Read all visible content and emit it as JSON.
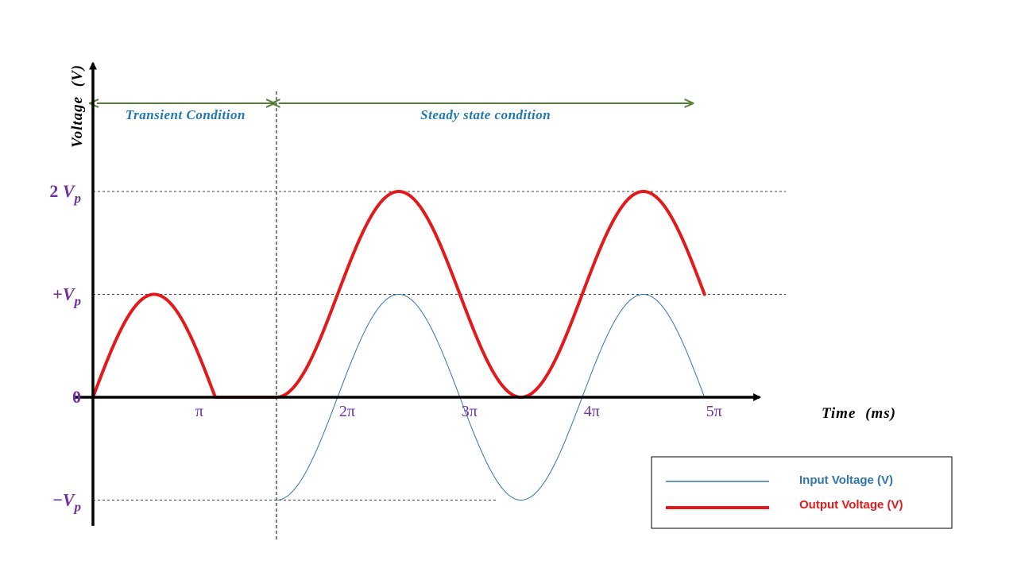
{
  "chart_data": {
    "type": "line",
    "xlabel": {
      "main": "Time",
      "unit": "(ms)"
    },
    "ylabel": {
      "main": "Voltage",
      "unit": "(V)"
    },
    "xlim": [
      0,
      15.9
    ],
    "ylim": [
      -1.25,
      3.2
    ],
    "x_ticks": [
      {
        "value": 3.1416,
        "label": "π"
      },
      {
        "value": 6.2832,
        "label": "2π"
      },
      {
        "value": 9.4248,
        "label": "3π"
      },
      {
        "value": 12.5664,
        "label": "4π"
      },
      {
        "value": 15.708,
        "label": "5π"
      }
    ],
    "y_ticks": [
      {
        "value": 2,
        "base": "2 ",
        "var": "V",
        "sub": "p"
      },
      {
        "value": 1,
        "base": "+",
        "var": "V",
        "sub": "p"
      },
      {
        "value": 0,
        "base": "0",
        "var": "",
        "sub": ""
      },
      {
        "value": -1,
        "base": "−",
        "var": "V",
        "sub": "p"
      }
    ],
    "reference_lines": [
      {
        "y": 2,
        "x_end": 17.8
      },
      {
        "y": 1,
        "x_end": 17.8
      },
      {
        "y": -1,
        "x_end": 10.4
      }
    ],
    "divider_x": 4.7124,
    "regions": [
      {
        "label": "Transient Condition",
        "x_start": 0.1,
        "x_end": 4.65
      },
      {
        "label": "Steady state condition",
        "x_start": 4.77,
        "x_end": 15.4
      }
    ],
    "series": [
      {
        "name": "Input Voltage (V)",
        "color": "#2e75b6",
        "function": "sin",
        "x_start": 4.7124,
        "x_end": 15.708
      },
      {
        "name": "Output Voltage (V)",
        "color": "#e31a1c",
        "function": "clamper",
        "x_start": 0,
        "x_end": 15.708
      }
    ],
    "legend_position": "bottom-right"
  }
}
